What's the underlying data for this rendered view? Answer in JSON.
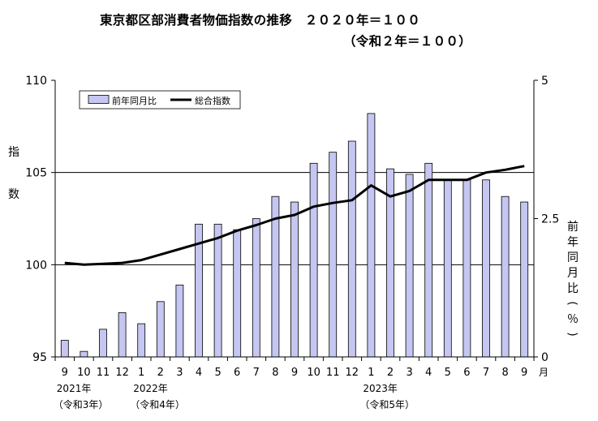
{
  "chart_data": {
    "type": "bar+line",
    "title": "東京都区部消費者物価指数の推移　２０２０年＝１００",
    "subtitle": "（令和２年＝１００）",
    "left_axis": {
      "label": "指数",
      "ylim": [
        95,
        110
      ],
      "ticks": [
        95,
        100,
        105,
        110
      ]
    },
    "right_axis": {
      "label": "前年同月比（％）",
      "ylim": [
        0,
        5
      ],
      "ticks": [
        "0",
        "2.5",
        "5"
      ]
    },
    "categories": [
      "9",
      "10",
      "11",
      "12",
      "1",
      "2",
      "3",
      "4",
      "5",
      "6",
      "7",
      "8",
      "9",
      "10",
      "11",
      "12",
      "1",
      "2",
      "3",
      "4",
      "5",
      "6",
      "7",
      "8",
      "9"
    ],
    "month_unit": "月",
    "year_labels": [
      {
        "index": 0,
        "line1": "2021年",
        "line2": "（令和3年）"
      },
      {
        "index": 4,
        "line1": "2022年",
        "line2": "（令和4年）"
      },
      {
        "index": 16,
        "line1": "2023年",
        "line2": "（令和5年）"
      }
    ],
    "grid_lines_left": [
      100,
      105
    ],
    "series": [
      {
        "name": "前年同月比",
        "type": "bar",
        "axis": "right",
        "color": "#c6c6f2",
        "values": [
          0.3,
          0.1,
          0.5,
          0.8,
          0.6,
          1.0,
          1.3,
          2.4,
          2.4,
          2.3,
          2.5,
          2.9,
          2.8,
          3.5,
          3.7,
          3.9,
          4.4,
          3.4,
          3.3,
          3.5,
          3.2,
          3.2,
          3.2,
          2.9,
          2.8
        ]
      },
      {
        "name": "総合指数",
        "type": "line",
        "axis": "left",
        "color": "#000000",
        "values": [
          100.1,
          100.0,
          100.05,
          100.1,
          100.25,
          100.55,
          100.85,
          101.15,
          101.45,
          101.85,
          102.15,
          102.5,
          102.7,
          103.15,
          103.35,
          103.5,
          104.3,
          103.7,
          104.0,
          104.6,
          104.6,
          104.6,
          105.0,
          105.15,
          105.35
        ]
      }
    ],
    "legend": {
      "placement": "top-left",
      "entries": [
        "前年同月比",
        "総合指数"
      ]
    }
  }
}
